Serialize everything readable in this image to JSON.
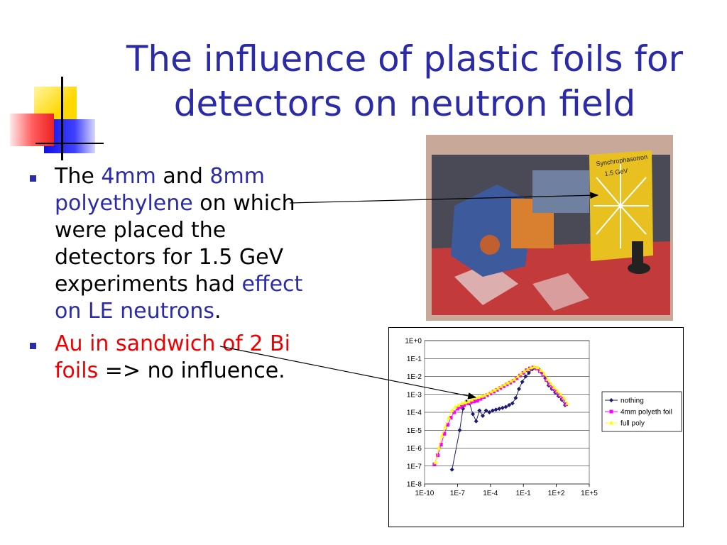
{
  "title": "The influence of plastic foils for detectors on neutron field",
  "bullets": [
    {
      "p1": "The ",
      "h1": "4mm",
      "p2": " and ",
      "h2": "8mm",
      "p3": " ",
      "h3": "polyethylene",
      "p4": " on which were placed the detectors for 1.5 GeV experiments had ",
      "h4": "effect on LE neutrons",
      "p5": "."
    },
    {
      "h1": "Au in sandwich of 2 Bi foils",
      "p1": " => no influence."
    }
  ],
  "photo": {
    "note_line1": "Synchrophasotron",
    "note_line2": "1.5 GeV"
  },
  "chart_data": {
    "type": "scatter",
    "x_scale": "log",
    "y_scale": "log",
    "xlim_exp": [
      -10,
      5
    ],
    "ylim_exp": [
      -8,
      0
    ],
    "x_tick_labels": [
      "1E-10",
      "1E-7",
      "1E-4",
      "1E-1",
      "1E+2",
      "1E+5"
    ],
    "y_tick_labels": [
      "1E+0",
      "1E-1",
      "1E-2",
      "1E-3",
      "1E-4",
      "1E-5",
      "1E-6",
      "1E-7",
      "1E-8"
    ],
    "grid": "horizontal",
    "legend_position": "right",
    "series": [
      {
        "name": "nothing",
        "color": "#1a1a6e",
        "marker": "diamond",
        "points_log10": [
          [
            -7.5,
            -7.2
          ],
          [
            -6.8,
            -5.0
          ],
          [
            -6.5,
            -3.8
          ],
          [
            -6.2,
            -3.4
          ],
          [
            -5.9,
            -3.5
          ],
          [
            -5.6,
            -4.1
          ],
          [
            -5.3,
            -4.5
          ],
          [
            -5.0,
            -3.9
          ],
          [
            -4.7,
            -4.2
          ],
          [
            -4.4,
            -3.9
          ],
          [
            -4.1,
            -4.0
          ],
          [
            -3.8,
            -3.9
          ],
          [
            -3.5,
            -3.85
          ],
          [
            -3.2,
            -3.8
          ],
          [
            -2.9,
            -3.75
          ],
          [
            -2.6,
            -3.7
          ],
          [
            -2.3,
            -3.6
          ],
          [
            -2.0,
            -3.5
          ],
          [
            -1.7,
            -3.2
          ],
          [
            -1.4,
            -2.7
          ],
          [
            -1.1,
            -2.3
          ],
          [
            -0.8,
            -2.0
          ],
          [
            -0.5,
            -1.8
          ],
          [
            -0.2,
            -1.6
          ],
          [
            0.1,
            -1.55
          ],
          [
            0.4,
            -1.6
          ],
          [
            0.7,
            -1.8
          ],
          [
            1.0,
            -2.1
          ],
          [
            1.3,
            -2.5
          ],
          [
            1.6,
            -2.7
          ],
          [
            1.9,
            -2.9
          ],
          [
            2.2,
            -3.1
          ],
          [
            2.5,
            -3.3
          ],
          [
            2.8,
            -3.6
          ]
        ]
      },
      {
        "name": "4mm polyeth foil",
        "color": "#ff00ff",
        "marker": "square",
        "points_log10": [
          [
            -9.1,
            -6.9
          ],
          [
            -8.8,
            -6.4
          ],
          [
            -8.5,
            -5.8
          ],
          [
            -8.2,
            -5.2
          ],
          [
            -7.9,
            -4.7
          ],
          [
            -7.6,
            -4.3
          ],
          [
            -7.3,
            -4.0
          ],
          [
            -7.0,
            -3.8
          ],
          [
            -6.7,
            -3.7
          ],
          [
            -6.4,
            -3.6
          ],
          [
            -6.1,
            -3.5
          ],
          [
            -5.8,
            -3.45
          ],
          [
            -5.5,
            -3.4
          ],
          [
            -5.2,
            -3.35
          ],
          [
            -4.9,
            -3.25
          ],
          [
            -4.6,
            -3.15
          ],
          [
            -4.3,
            -3.05
          ],
          [
            -4.0,
            -2.95
          ],
          [
            -3.7,
            -2.85
          ],
          [
            -3.4,
            -2.75
          ],
          [
            -3.1,
            -2.65
          ],
          [
            -2.8,
            -2.55
          ],
          [
            -2.5,
            -2.45
          ],
          [
            -2.2,
            -2.35
          ],
          [
            -1.9,
            -2.25
          ],
          [
            -1.6,
            -2.1
          ],
          [
            -1.3,
            -1.95
          ],
          [
            -1.0,
            -1.8
          ],
          [
            -0.7,
            -1.65
          ],
          [
            -0.4,
            -1.55
          ],
          [
            -0.1,
            -1.5
          ],
          [
            0.2,
            -1.55
          ],
          [
            0.5,
            -1.7
          ],
          [
            0.8,
            -1.9
          ],
          [
            1.1,
            -2.2
          ],
          [
            1.4,
            -2.45
          ],
          [
            1.7,
            -2.65
          ],
          [
            2.0,
            -2.85
          ],
          [
            2.3,
            -3.05
          ],
          [
            2.6,
            -3.25
          ],
          [
            2.9,
            -3.55
          ]
        ]
      },
      {
        "name": "full poly",
        "color": "#ffff00",
        "marker": "triangle",
        "points_log10": [
          [
            -9.0,
            -6.8
          ],
          [
            -8.7,
            -6.0
          ],
          [
            -8.4,
            -5.3
          ],
          [
            -8.1,
            -4.8
          ],
          [
            -7.8,
            -4.3
          ],
          [
            -7.5,
            -3.9
          ],
          [
            -7.2,
            -3.7
          ],
          [
            -6.9,
            -3.6
          ],
          [
            -6.6,
            -3.5
          ],
          [
            -6.3,
            -3.45
          ],
          [
            -6.0,
            -3.4
          ],
          [
            -5.7,
            -3.3
          ],
          [
            -5.4,
            -3.2
          ],
          [
            -5.1,
            -3.15
          ],
          [
            -4.8,
            -3.1
          ],
          [
            -4.5,
            -3.05
          ],
          [
            -4.2,
            -2.95
          ],
          [
            -3.9,
            -2.85
          ],
          [
            -3.6,
            -2.75
          ],
          [
            -3.3,
            -2.65
          ],
          [
            -3.0,
            -2.55
          ],
          [
            -2.7,
            -2.45
          ],
          [
            -2.4,
            -2.35
          ],
          [
            -2.1,
            -2.25
          ],
          [
            -1.8,
            -2.15
          ],
          [
            -1.5,
            -2.0
          ],
          [
            -1.2,
            -1.85
          ],
          [
            -0.9,
            -1.7
          ],
          [
            -0.6,
            -1.6
          ],
          [
            -0.3,
            -1.5
          ],
          [
            0.0,
            -1.45
          ],
          [
            0.3,
            -1.5
          ],
          [
            0.6,
            -1.65
          ],
          [
            0.9,
            -1.85
          ],
          [
            1.2,
            -2.15
          ],
          [
            1.5,
            -2.4
          ],
          [
            1.8,
            -2.6
          ],
          [
            2.1,
            -2.8
          ],
          [
            2.4,
            -3.0
          ],
          [
            2.7,
            -3.2
          ],
          [
            3.0,
            -3.5
          ]
        ]
      }
    ]
  }
}
